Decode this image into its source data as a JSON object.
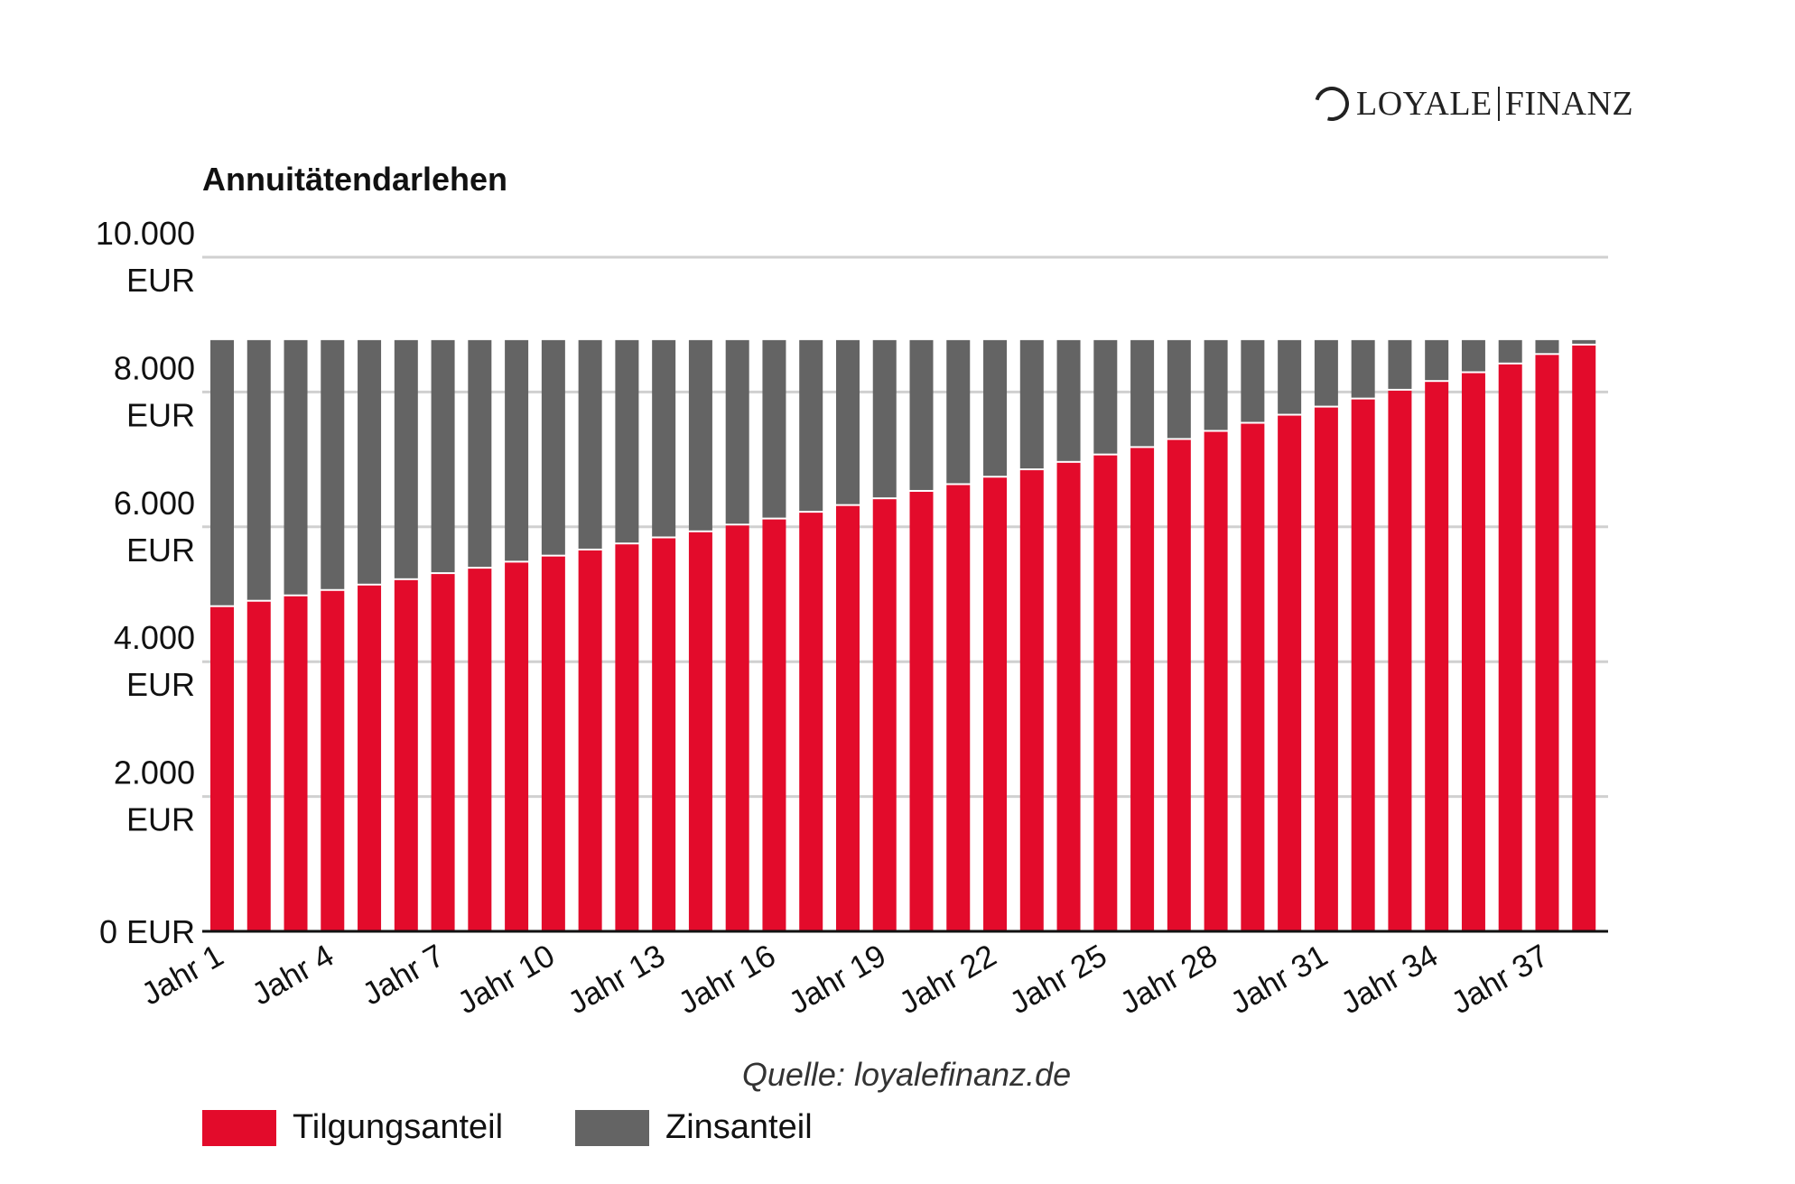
{
  "logo": {
    "left": "LOYALE",
    "right": "FINANZ"
  },
  "chart_data": {
    "type": "bar",
    "stacked": true,
    "title": "Annuitätendarlehen",
    "xlabel": "",
    "ylabel": "",
    "ylim": [
      0,
      10000
    ],
    "yticks": [
      0,
      2000,
      4000,
      6000,
      8000,
      10000
    ],
    "ytick_labels": [
      [
        "0 EUR"
      ],
      [
        "2.000",
        "EUR"
      ],
      [
        "4.000",
        "EUR"
      ],
      [
        "6.000",
        "EUR"
      ],
      [
        "8.000",
        "EUR"
      ],
      [
        "10.000",
        "EUR"
      ]
    ],
    "grid": true,
    "categories": [
      "Jahr 1",
      "Jahr 2",
      "Jahr 3",
      "Jahr 4",
      "Jahr 5",
      "Jahr 6",
      "Jahr 7",
      "Jahr 8",
      "Jahr 9",
      "Jahr 10",
      "Jahr 11",
      "Jahr 12",
      "Jahr 13",
      "Jahr 14",
      "Jahr 15",
      "Jahr 16",
      "Jahr 17",
      "Jahr 18",
      "Jahr 19",
      "Jahr 20",
      "Jahr 21",
      "Jahr 22",
      "Jahr 23",
      "Jahr 24",
      "Jahr 25",
      "Jahr 26",
      "Jahr 27",
      "Jahr 28",
      "Jahr 29",
      "Jahr 30",
      "Jahr 31",
      "Jahr 32",
      "Jahr 33",
      "Jahr 34",
      "Jahr 35",
      "Jahr 36",
      "Jahr 37",
      "Jahr 38"
    ],
    "shown_tick_every": 3,
    "series": [
      {
        "name": "Tilgungsanteil",
        "color": "#e30b2b",
        "values": [
          4810,
          4890,
          4970,
          5050,
          5130,
          5210,
          5300,
          5380,
          5470,
          5560,
          5650,
          5740,
          5830,
          5920,
          6020,
          6110,
          6210,
          6310,
          6410,
          6520,
          6620,
          6730,
          6840,
          6950,
          7060,
          7170,
          7290,
          7410,
          7530,
          7650,
          7770,
          7890,
          8020,
          8150,
          8280,
          8410,
          8550,
          8690
        ]
      },
      {
        "name": "Zinsanteil",
        "color": "#646464",
        "values": [
          3960,
          3880,
          3800,
          3720,
          3640,
          3560,
          3470,
          3390,
          3300,
          3210,
          3120,
          3030,
          2940,
          2850,
          2750,
          2660,
          2560,
          2460,
          2360,
          2250,
          2150,
          2040,
          1930,
          1820,
          1710,
          1600,
          1480,
          1360,
          1240,
          1120,
          1000,
          880,
          750,
          620,
          490,
          360,
          220,
          80
        ]
      }
    ],
    "legend_position": "bottom-left",
    "source": "Quelle: loyalefinanz.de"
  }
}
